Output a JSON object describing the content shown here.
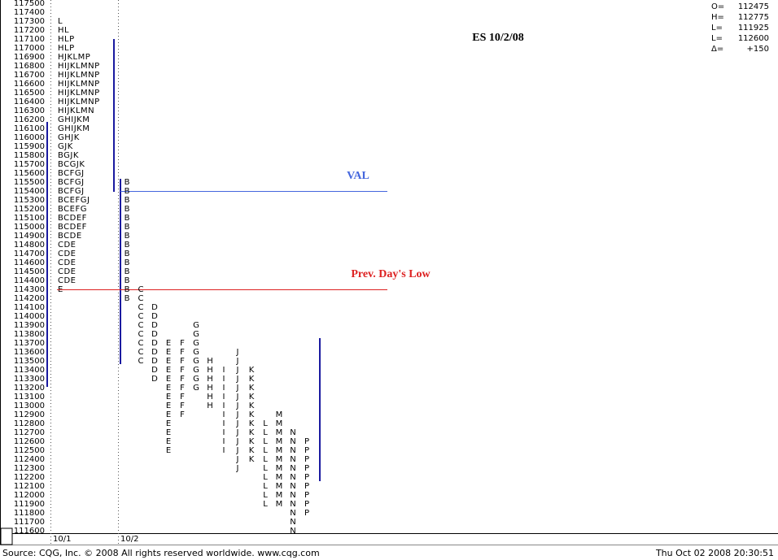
{
  "chart_data": {
    "type": "market-profile",
    "title": "ES 10/2/08",
    "yticks": [
      117500,
      117400,
      117300,
      117200,
      117100,
      117000,
      116900,
      116800,
      116700,
      116600,
      116500,
      116400,
      116300,
      116200,
      116100,
      116000,
      115900,
      115800,
      115700,
      115600,
      115500,
      115400,
      115300,
      115200,
      115100,
      115000,
      114900,
      114800,
      114700,
      114600,
      114500,
      114400,
      114300,
      114200,
      114100,
      114000,
      113900,
      113800,
      113700,
      113600,
      113500,
      113400,
      113300,
      113200,
      113100,
      113000,
      112900,
      112800,
      112700,
      112600,
      112500,
      112400,
      112300,
      112200,
      112100,
      112000,
      111900,
      111800,
      111700,
      111600
    ],
    "ylim": [
      111600,
      117500
    ],
    "days": [
      "10/1",
      "10/2"
    ],
    "prior_day_profile": [
      {
        "price": 117300,
        "tpo": "L"
      },
      {
        "price": 117200,
        "tpo": "HL"
      },
      {
        "price": 117100,
        "tpo": "HLP"
      },
      {
        "price": 117000,
        "tpo": "HLP"
      },
      {
        "price": 116900,
        "tpo": "HJKLMP"
      },
      {
        "price": 116800,
        "tpo": "HIJKLMNP"
      },
      {
        "price": 116700,
        "tpo": "HIJKLMNP"
      },
      {
        "price": 116600,
        "tpo": "HIJKLMNP"
      },
      {
        "price": 116500,
        "tpo": "HIJKLMNP"
      },
      {
        "price": 116400,
        "tpo": "HIJKLMNP"
      },
      {
        "price": 116300,
        "tpo": "HIJKLMN"
      },
      {
        "price": 116200,
        "tpo": "GHIJKM"
      },
      {
        "price": 116100,
        "tpo": "GHIJKM"
      },
      {
        "price": 116000,
        "tpo": "GHJK"
      },
      {
        "price": 115900,
        "tpo": "GJK"
      },
      {
        "price": 115800,
        "tpo": "BGJK"
      },
      {
        "price": 115700,
        "tpo": "BCGJK"
      },
      {
        "price": 115600,
        "tpo": "BCFGJ"
      },
      {
        "price": 115500,
        "tpo": "BCFGJ"
      },
      {
        "price": 115400,
        "tpo": "BCFGJ"
      },
      {
        "price": 115300,
        "tpo": "BCEFGJ"
      },
      {
        "price": 115200,
        "tpo": "BCEFG"
      },
      {
        "price": 115100,
        "tpo": "BCDEF"
      },
      {
        "price": 115000,
        "tpo": "BCDEF"
      },
      {
        "price": 114900,
        "tpo": "BCDE"
      },
      {
        "price": 114800,
        "tpo": "CDE"
      },
      {
        "price": 114700,
        "tpo": "CDE"
      },
      {
        "price": 114600,
        "tpo": "CDE"
      },
      {
        "price": 114500,
        "tpo": "CDE"
      },
      {
        "price": 114400,
        "tpo": "CDE"
      },
      {
        "price": 114300,
        "tpo": "E"
      }
    ],
    "periods": [
      {
        "letter": "B",
        "high": 115500,
        "low": 114200
      },
      {
        "letter": "C",
        "high": 114300,
        "low": 113500
      },
      {
        "letter": "D",
        "high": 114100,
        "low": 113300
      },
      {
        "letter": "E",
        "high": 113700,
        "low": 112500
      },
      {
        "letter": "F",
        "high": 113700,
        "low": 112900
      },
      {
        "letter": "G",
        "high": 113900,
        "low": 113200
      },
      {
        "letter": "H",
        "high": 113500,
        "low": 113000
      },
      {
        "letter": "I",
        "high": 113400,
        "low": 112500
      },
      {
        "letter": "J",
        "high": 113600,
        "low": 112300
      },
      {
        "letter": "K",
        "high": 113400,
        "low": 112400
      },
      {
        "letter": "L",
        "high": 112800,
        "low": 111900
      },
      {
        "letter": "M",
        "high": 112900,
        "low": 111900
      },
      {
        "letter": "N",
        "high": 112700,
        "low": 111600
      },
      {
        "letter": "P",
        "high": 112600,
        "low": 111800
      }
    ],
    "levels": [
      {
        "label": "VAL",
        "value": 115400,
        "color": "#4466dd"
      },
      {
        "label": "Prev. Day's Low",
        "value": 114300,
        "color": "#dd2222"
      }
    ],
    "stats": [
      {
        "label": "O=",
        "value": 112475
      },
      {
        "label": "H=",
        "value": 112775
      },
      {
        "label": "L=",
        "value": 111925
      },
      {
        "label": "L=",
        "value": 112600
      },
      {
        "label": "Δ=",
        "value": 150,
        "value_label": "+150"
      }
    ],
    "source": "Source: CQG, Inc. © 2008 All rights reserved worldwide. www.cqg.com",
    "timestamp": "Thu Oct 02 2008 20:30:51"
  }
}
